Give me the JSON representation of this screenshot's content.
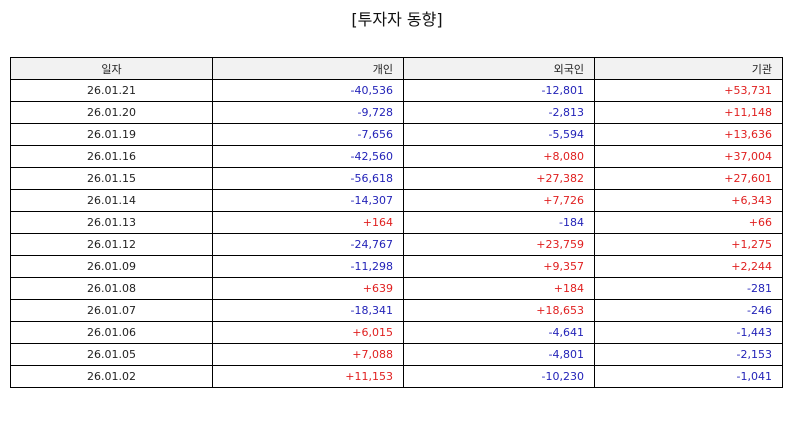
{
  "title": "[투자자 동향]",
  "columns": [
    "일자",
    "개인",
    "외국인",
    "기관"
  ],
  "rows": [
    [
      "26.01.21",
      "-40,536",
      "-12,801",
      "+53,731"
    ],
    [
      "26.01.20",
      "-9,728",
      "-2,813",
      "+11,148"
    ],
    [
      "26.01.19",
      "-7,656",
      "-5,594",
      "+13,636"
    ],
    [
      "26.01.16",
      "-42,560",
      "+8,080",
      "+37,004"
    ],
    [
      "26.01.15",
      "-56,618",
      "+27,382",
      "+27,601"
    ],
    [
      "26.01.14",
      "-14,307",
      "+7,726",
      "+6,343"
    ],
    [
      "26.01.13",
      "+164",
      "-184",
      "+66"
    ],
    [
      "26.01.12",
      "-24,767",
      "+23,759",
      "+1,275"
    ],
    [
      "26.01.09",
      "-11,298",
      "+9,357",
      "+2,244"
    ],
    [
      "26.01.08",
      "+639",
      "+184",
      "-281"
    ],
    [
      "26.01.07",
      "-18,341",
      "+18,653",
      "-246"
    ],
    [
      "26.01.06",
      "+6,015",
      "-4,641",
      "-1,443"
    ],
    [
      "26.01.05",
      "+7,088",
      "-4,801",
      "-2,153"
    ],
    [
      "26.01.02",
      "+11,153",
      "-10,230",
      "-1,041"
    ]
  ],
  "colors": {
    "positive": "#e02020",
    "negative": "#2323b8",
    "header_bg": "#f2f2f2"
  }
}
